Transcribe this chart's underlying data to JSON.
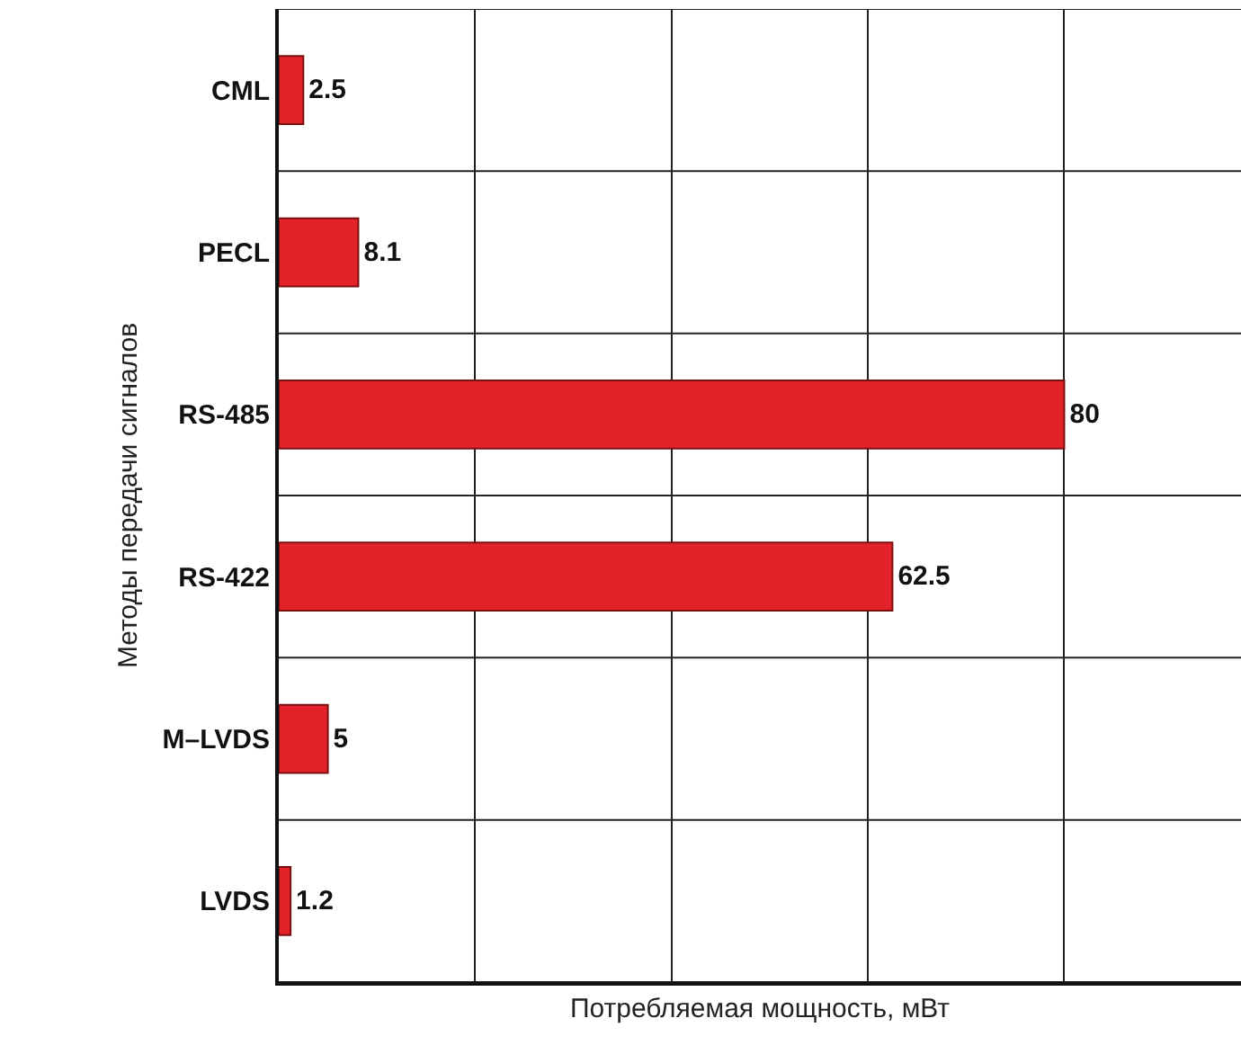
{
  "chart_data": {
    "type": "bar",
    "orientation": "horizontal",
    "xlabel": "Потребляемая мощность, мВт",
    "ylabel": "Методы передачи сигналов",
    "categories": [
      "CML",
      "PECL",
      "RS-485",
      "RS-422",
      "M–LVDS",
      "LVDS"
    ],
    "values": [
      2.5,
      8.1,
      80,
      62.5,
      5,
      1.2
    ],
    "color": "#e3222a",
    "data_labels": true,
    "xlim": [
      0,
      98
    ],
    "xticks": [
      {
        "value": 20,
        "label": null
      },
      {
        "value": 40,
        "label": null
      },
      {
        "value": 60,
        "label": null
      },
      {
        "value": 80,
        "label": null
      }
    ],
    "grid": true,
    "tick_labels": "y"
  }
}
